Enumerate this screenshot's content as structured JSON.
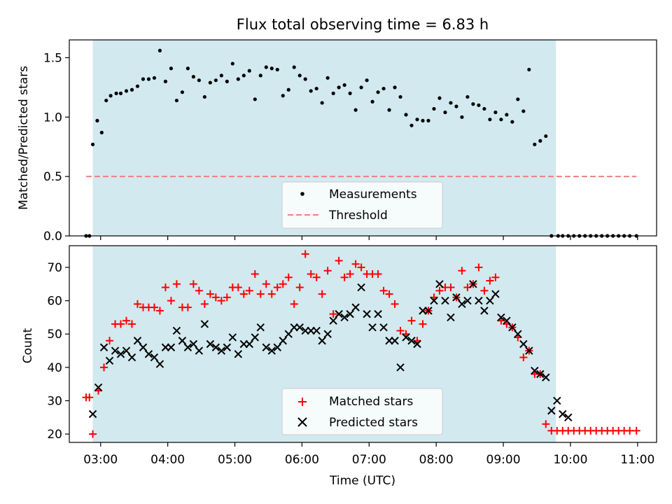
{
  "title": "Flux total observing time = 6.83 h",
  "chart_data": [
    {
      "type": "scatter",
      "panel": "top",
      "ylabel": "Matched/Predicted stars",
      "xlim": [
        "02:32",
        "11:17"
      ],
      "ylim": [
        0,
        1.65
      ],
      "yticks": [
        0.0,
        0.5,
        1.0,
        1.5
      ],
      "ytick_labels": [
        "0.0",
        "0.5",
        "1.0",
        "1.5"
      ],
      "shaded_span": [
        "02:53",
        "09:47"
      ],
      "shaded_color": "#d2e9ef",
      "legend_position": "bottom-center",
      "series": [
        {
          "name": "Measurements",
          "marker": "dot",
          "color": "#000000",
          "x": [
            "02:47",
            "02:50",
            "02:53",
            "02:57",
            "03:01",
            "03:05",
            "03:09",
            "03:14",
            "03:18",
            "03:23",
            "03:28",
            "03:33",
            "03:38",
            "03:43",
            "03:48",
            "03:53",
            "03:58",
            "04:03",
            "04:08",
            "04:13",
            "04:18",
            "04:23",
            "04:28",
            "04:33",
            "04:38",
            "04:43",
            "04:48",
            "04:53",
            "04:58",
            "05:03",
            "05:08",
            "05:13",
            "05:18",
            "05:23",
            "05:28",
            "05:33",
            "05:38",
            "05:43",
            "05:48",
            "05:53",
            "05:58",
            "06:03",
            "06:08",
            "06:13",
            "06:18",
            "06:23",
            "06:28",
            "06:33",
            "06:38",
            "06:43",
            "06:48",
            "06:53",
            "06:58",
            "07:03",
            "07:08",
            "07:13",
            "07:18",
            "07:23",
            "07:28",
            "07:33",
            "07:38",
            "07:43",
            "07:48",
            "07:53",
            "07:58",
            "08:03",
            "08:08",
            "08:13",
            "08:18",
            "08:23",
            "08:28",
            "08:33",
            "08:38",
            "08:43",
            "08:48",
            "08:53",
            "08:58",
            "09:03",
            "09:08",
            "09:13",
            "09:18",
            "09:23",
            "09:28",
            "09:33",
            "09:38",
            "09:43",
            "09:49",
            "09:53",
            "09:58",
            "10:03",
            "10:08",
            "10:13",
            "10:18",
            "10:23",
            "10:28",
            "10:33",
            "10:38",
            "10:43",
            "10:48",
            "10:53",
            "10:59"
          ],
          "y": [
            0.0,
            0.0,
            0.77,
            0.97,
            0.87,
            1.14,
            1.18,
            1.2,
            1.2,
            1.22,
            1.23,
            1.26,
            1.32,
            1.32,
            1.33,
            1.56,
            1.3,
            1.41,
            1.14,
            1.21,
            1.41,
            1.34,
            1.31,
            1.17,
            1.29,
            1.31,
            1.35,
            1.3,
            1.45,
            1.32,
            1.35,
            1.39,
            1.15,
            1.35,
            1.42,
            1.41,
            1.4,
            1.18,
            1.23,
            1.42,
            1.35,
            1.32,
            1.22,
            1.24,
            1.12,
            1.33,
            1.2,
            1.25,
            1.27,
            1.2,
            1.06,
            1.25,
            1.31,
            1.13,
            1.21,
            1.24,
            1.06,
            1.25,
            1.17,
            1.02,
            0.93,
            0.98,
            0.97,
            0.97,
            1.07,
            1.16,
            1.04,
            1.12,
            1.09,
            1.0,
            1.17,
            1.11,
            1.1,
            1.07,
            0.98,
            1.04,
            0.98,
            1.02,
            0.96,
            1.15,
            1.05,
            1.4,
            0.77,
            0.8,
            0.84,
            0.0,
            0.0,
            0.0,
            0.0,
            0.0,
            0.0,
            0.0,
            0.0,
            0.0,
            0.0,
            0.0,
            0.0,
            0.0,
            0.0,
            0.0,
            0.0
          ]
        },
        {
          "name": "Threshold",
          "marker": "dashed-line",
          "color": "#f08080",
          "x": [
            "02:47",
            "10:59"
          ],
          "y": [
            0.5,
            0.5
          ]
        }
      ]
    },
    {
      "type": "scatter",
      "panel": "bottom",
      "xlabel": "Time (UTC)",
      "ylabel": "Count",
      "xlim": [
        "02:32",
        "11:17"
      ],
      "ylim": [
        17.5,
        76.5
      ],
      "xticks": [
        "03:00",
        "04:00",
        "05:00",
        "06:00",
        "07:00",
        "08:00",
        "09:00",
        "10:00",
        "11:00"
      ],
      "yticks": [
        20,
        30,
        40,
        50,
        60,
        70
      ],
      "shaded_span": [
        "02:53",
        "09:47"
      ],
      "shaded_color": "#d2e9ef",
      "legend_position": "bottom-center",
      "series": [
        {
          "name": "Matched stars",
          "marker": "plus",
          "color": "#ff0000",
          "x": [
            "02:47",
            "02:50",
            "02:53",
            "02:58",
            "03:03",
            "03:08",
            "03:13",
            "03:18",
            "03:23",
            "03:28",
            "03:33",
            "03:38",
            "03:43",
            "03:48",
            "03:53",
            "03:58",
            "04:03",
            "04:08",
            "04:13",
            "04:18",
            "04:23",
            "04:28",
            "04:33",
            "04:38",
            "04:43",
            "04:48",
            "04:53",
            "04:58",
            "05:03",
            "05:08",
            "05:13",
            "05:18",
            "05:23",
            "05:28",
            "05:33",
            "05:38",
            "05:43",
            "05:48",
            "05:53",
            "05:58",
            "06:03",
            "06:08",
            "06:13",
            "06:18",
            "06:23",
            "06:28",
            "06:33",
            "06:38",
            "06:43",
            "06:48",
            "06:53",
            "06:58",
            "07:03",
            "07:08",
            "07:13",
            "07:18",
            "07:23",
            "07:28",
            "07:33",
            "07:38",
            "07:43",
            "07:48",
            "07:53",
            "07:58",
            "08:03",
            "08:08",
            "08:13",
            "08:18",
            "08:23",
            "08:28",
            "08:33",
            "08:38",
            "08:43",
            "08:48",
            "08:53",
            "08:58",
            "09:03",
            "09:08",
            "09:13",
            "09:18",
            "09:23",
            "09:28",
            "09:33",
            "09:38",
            "09:43",
            "09:48",
            "09:53",
            "09:58",
            "10:03",
            "10:08",
            "10:13",
            "10:18",
            "10:23",
            "10:28",
            "10:33",
            "10:38",
            "10:43",
            "10:48",
            "10:53",
            "10:59"
          ],
          "y": [
            31,
            31,
            20,
            33,
            40,
            48,
            53,
            53,
            54,
            53,
            59,
            58,
            58,
            58,
            57,
            64,
            60,
            65,
            58,
            58,
            65,
            63,
            59,
            62,
            61,
            60,
            61,
            64,
            64,
            62,
            63,
            68,
            62,
            65,
            62,
            64,
            65,
            67,
            59,
            64,
            74,
            68,
            67,
            62,
            69,
            56,
            72,
            67,
            68,
            71,
            70,
            68,
            68,
            68,
            63,
            62,
            59,
            51,
            50,
            54,
            48,
            53,
            57,
            61,
            63,
            64,
            64,
            61,
            69,
            64,
            65,
            70,
            63,
            66,
            67,
            54,
            53,
            52,
            49,
            43,
            45,
            38,
            38,
            23,
            21,
            21,
            21,
            21,
            21,
            21,
            21,
            21,
            21,
            21,
            21,
            21,
            21,
            21,
            21,
            21
          ]
        },
        {
          "name": "Predicted stars",
          "marker": "x",
          "color": "#000000",
          "x": [
            "02:53",
            "02:58",
            "03:03",
            "03:08",
            "03:13",
            "03:18",
            "03:23",
            "03:28",
            "03:33",
            "03:38",
            "03:43",
            "03:48",
            "03:53",
            "03:58",
            "04:03",
            "04:08",
            "04:13",
            "04:18",
            "04:23",
            "04:28",
            "04:33",
            "04:38",
            "04:43",
            "04:48",
            "04:53",
            "04:58",
            "05:03",
            "05:08",
            "05:13",
            "05:18",
            "05:23",
            "05:28",
            "05:33",
            "05:38",
            "05:43",
            "05:48",
            "05:53",
            "05:58",
            "06:03",
            "06:08",
            "06:13",
            "06:18",
            "06:23",
            "06:28",
            "06:33",
            "06:38",
            "06:43",
            "06:48",
            "06:53",
            "06:58",
            "07:03",
            "07:08",
            "07:13",
            "07:18",
            "07:23",
            "07:28",
            "07:33",
            "07:38",
            "07:43",
            "07:48",
            "07:53",
            "07:58",
            "08:03",
            "08:08",
            "08:13",
            "08:18",
            "08:23",
            "08:28",
            "08:33",
            "08:38",
            "08:43",
            "08:48",
            "08:53",
            "08:58",
            "09:03",
            "09:08",
            "09:13",
            "09:18",
            "09:23",
            "09:28",
            "09:33",
            "09:38",
            "09:43",
            "09:48",
            "09:53",
            "09:58"
          ],
          "y": [
            26,
            34,
            46,
            42,
            45,
            44,
            45,
            43,
            48,
            46,
            44,
            43,
            41,
            46,
            46,
            51,
            48,
            46,
            47,
            45,
            53,
            47,
            46,
            45,
            46,
            49,
            44,
            47,
            47,
            49,
            52,
            46,
            45,
            46,
            48,
            50,
            52,
            52,
            51,
            51,
            51,
            48,
            50,
            54,
            56,
            55,
            56,
            58,
            64,
            56,
            52,
            56,
            52,
            48,
            48,
            40,
            49,
            48,
            47,
            57,
            57,
            60,
            65,
            60,
            55,
            61,
            59,
            60,
            65,
            60,
            57,
            60,
            62,
            55,
            54,
            52,
            50,
            47,
            45,
            39,
            38,
            37,
            27,
            30,
            26,
            25
          ]
        }
      ]
    }
  ]
}
